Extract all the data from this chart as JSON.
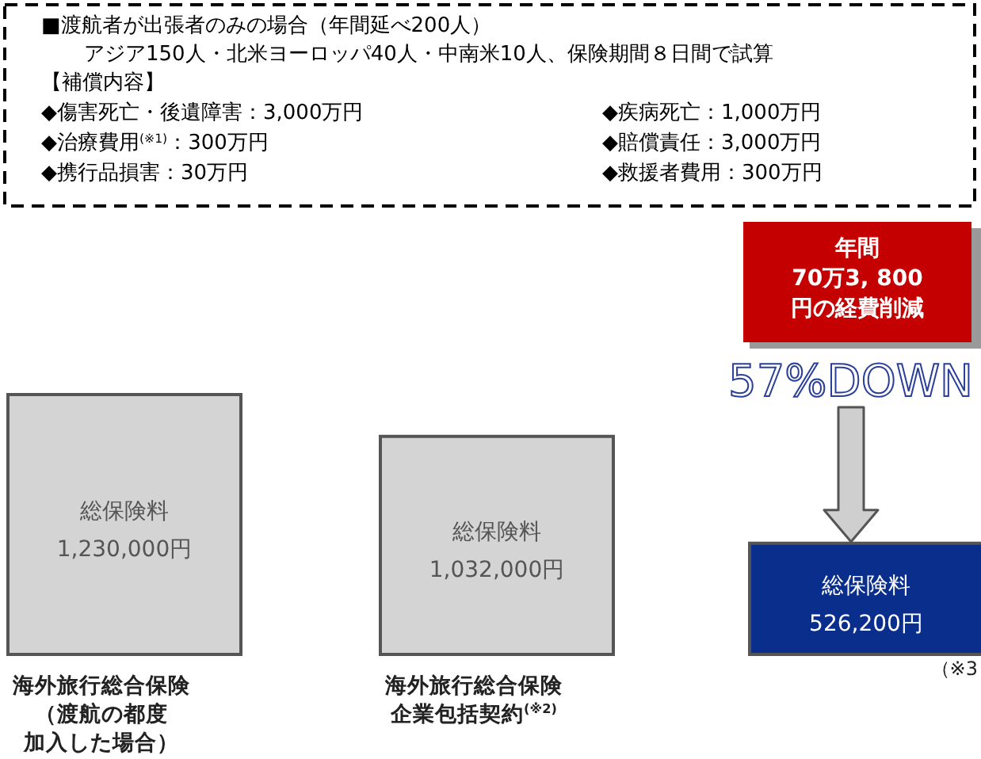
{
  "chart_data": {
    "type": "bar",
    "categories": [
      "海外旅行総合保険（渡航の都度加入した場合）",
      "海外旅行総合保険企業包括契約$^{(※2)}$",
      null
    ],
    "values": [
      1230000,
      1032000,
      526200
    ],
    "colors": [
      "#d4d4d4",
      "#d4d4d4",
      "#0a2e8c"
    ],
    "value_labels": [
      "総保険料\n1,230,000円",
      "総保険料\n1,032,000円",
      "総保険料\n526,200円"
    ],
    "annotations": [
      "■渡航者が出張者のみの場合（年間延べ200人）",
      "　アジア150人・北米ヨーロッパ40人・中南米10人、保険期間８日間で試算",
      "【補償内容】",
      "◆傷害死亡・後遺障害：3,000万円",
      "◆疾病死亡：1,000万円",
      "◆治療費用$^{(※1)}$：300万円",
      "◆賠償責任：3,000万円",
      "◆携行品損害：30万円",
      "◆救援者費用：300万円",
      "年間70万3, 800円の経費削減",
      "57%DOWN",
      "（※3"
    ]
  }
}
